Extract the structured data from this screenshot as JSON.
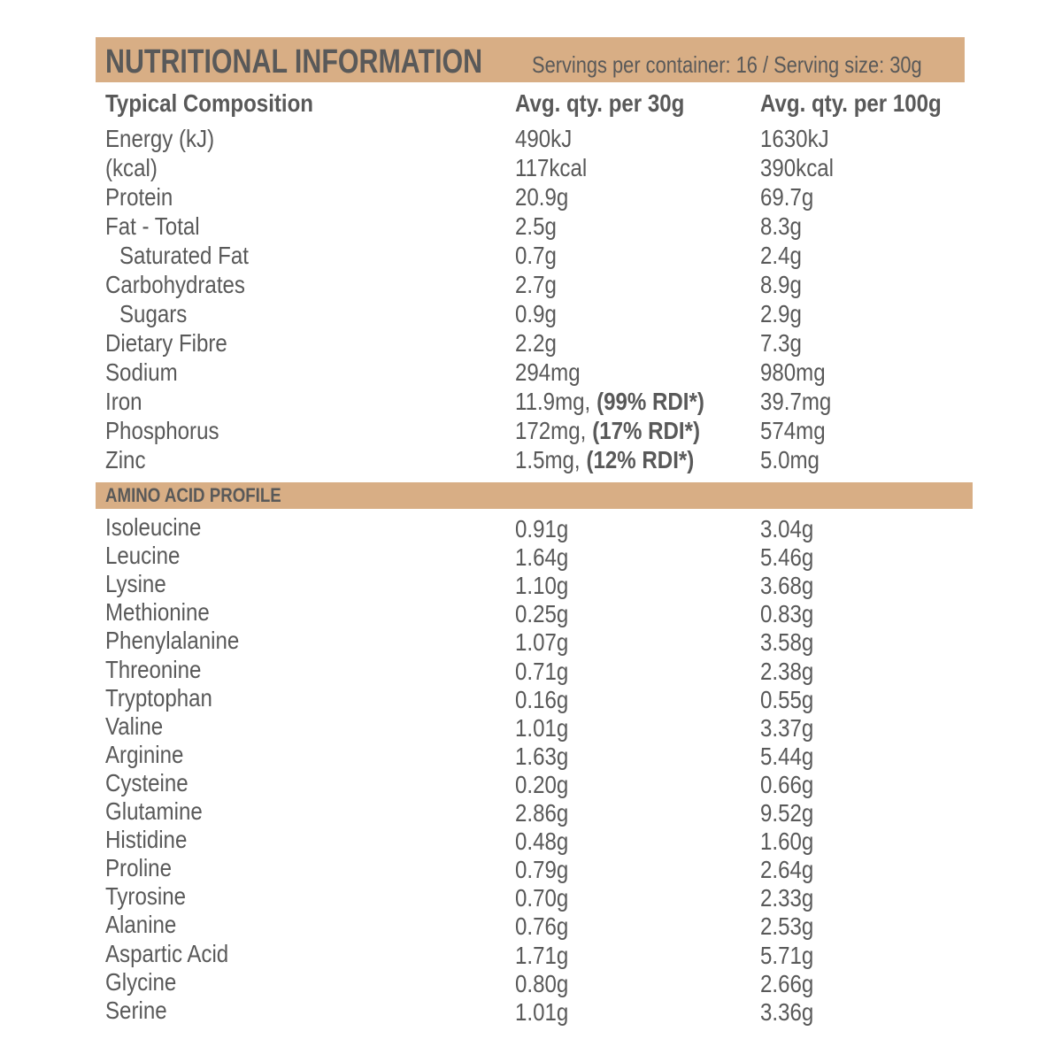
{
  "header": {
    "title": "NUTRITIONAL INFORMATION",
    "subtitle": "Servings per container: 16 / Serving size: 30g"
  },
  "table": {
    "columns": [
      "Typical Composition",
      "Avg. qty. per 30g",
      "Avg. qty. per 100g"
    ],
    "rows": [
      {
        "name": "Energy (kJ)",
        "per_30g": "490kJ",
        "per_100g": "1630kJ"
      },
      {
        "name": "(kcal)",
        "per_30g": "117kcal",
        "per_100g": "390kcal"
      },
      {
        "name": "Protein",
        "per_30g": "20.9g",
        "per_100g": "69.7g"
      },
      {
        "name": "Fat - Total",
        "per_30g": "2.5g",
        "per_100g": "8.3g"
      },
      {
        "name": "Saturated Fat",
        "per_30g": "0.7g",
        "per_100g": "2.4g"
      },
      {
        "name": "Carbohydrates",
        "per_30g": "2.7g",
        "per_100g": "8.9g"
      },
      {
        "name": "Sugars",
        "per_30g": "0.9g",
        "per_100g": "2.9g"
      },
      {
        "name": "Dietary Fibre",
        "per_30g": "2.2g",
        "per_100g": "7.3g"
      },
      {
        "name": "Sodium",
        "per_30g": "294mg",
        "per_100g": "980mg"
      },
      {
        "name": "Iron",
        "per_30g": "11.9mg,",
        "rdi": "(99% RDI*)",
        "per_100g": "39.7mg"
      },
      {
        "name": "Phosphorus",
        "per_30g": "172mg,",
        "rdi": "(17% RDI*)",
        "per_100g": "574mg"
      },
      {
        "name": "Zinc",
        "per_30g": "1.5mg,",
        "rdi": "(12% RDI*)",
        "per_100g": "5.0mg"
      }
    ]
  },
  "amino": {
    "title": "AMINO ACID PROFILE",
    "rows": [
      {
        "name": "Isoleucine",
        "per_30g": "0.91g",
        "per_100g": "3.04g"
      },
      {
        "name": "Leucine",
        "per_30g": "1.64g",
        "per_100g": "5.46g"
      },
      {
        "name": "Lysine",
        "per_30g": "1.10g",
        "per_100g": "3.68g"
      },
      {
        "name": "Methionine",
        "per_30g": "0.25g",
        "per_100g": "0.83g"
      },
      {
        "name": "Phenylalanine",
        "per_30g": "1.07g",
        "per_100g": "3.58g"
      },
      {
        "name": "Threonine",
        "per_30g": "0.71g",
        "per_100g": "2.38g"
      },
      {
        "name": "Tryptophan",
        "per_30g": "0.16g",
        "per_100g": "0.55g"
      },
      {
        "name": "Valine",
        "per_30g": "1.01g",
        "per_100g": "3.37g"
      },
      {
        "name": "Arginine",
        "per_30g": "1.63g",
        "per_100g": "5.44g"
      },
      {
        "name": "Cysteine",
        "per_30g": "0.20g",
        "per_100g": "0.66g"
      },
      {
        "name": "Glutamine",
        "per_30g": "2.86g",
        "per_100g": "9.52g"
      },
      {
        "name": "Histidine",
        "per_30g": "0.48g",
        "per_100g": "1.60g"
      },
      {
        "name": "Proline",
        "per_30g": "0.79g",
        "per_100g": "2.64g"
      },
      {
        "name": "Tyrosine",
        "per_30g": "0.70g",
        "per_100g": "2.33g"
      },
      {
        "name": "Alanine",
        "per_30g": "0.76g",
        "per_100g": "2.53g"
      },
      {
        "name": "Aspartic Acid",
        "per_30g": "1.71g",
        "per_100g": "5.71g"
      },
      {
        "name": "Glycine",
        "per_30g": "0.80g",
        "per_100g": "2.66g"
      },
      {
        "name": "Serine",
        "per_30g": "1.01g",
        "per_100g": "3.36g"
      }
    ]
  }
}
